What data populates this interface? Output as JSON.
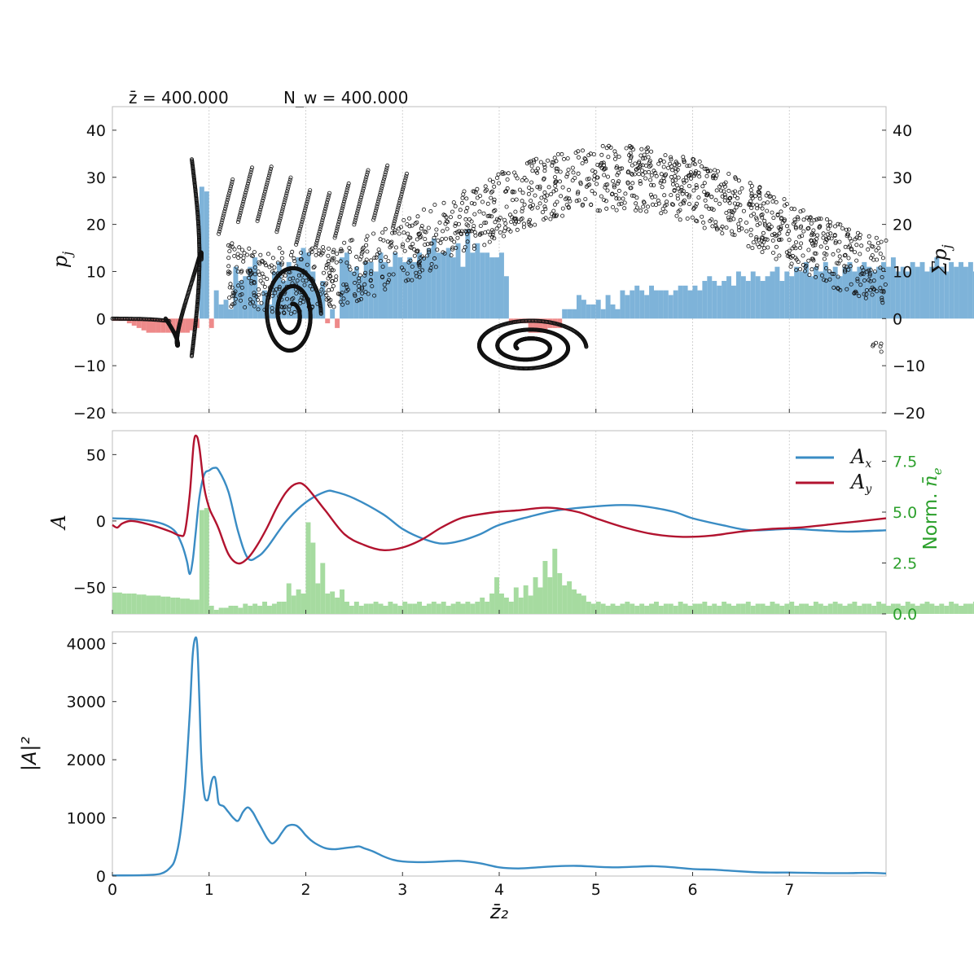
{
  "header": {
    "zbar_label": "z̄ = 400.000",
    "nw_label": "N_w = 400.000"
  },
  "xaxis": {
    "label": "z̄₂",
    "ticks": [
      "0",
      "1",
      "2",
      "3",
      "4",
      "5",
      "6",
      "7"
    ]
  },
  "colors": {
    "blue": "#3a8cc4",
    "red": "#b2132f",
    "hist_blue": "#7eb3d9",
    "hist_red": "#ee8a8a",
    "hist_green": "#a6dba0",
    "green_axis": "#2ca02c"
  },
  "chart_data": [
    {
      "type": "scatter",
      "panel": "phase-space",
      "ylabel_left": "p_j",
      "ylabel_right": "Σp_j",
      "xlim": [
        0,
        8
      ],
      "ylim": [
        -20,
        45
      ],
      "yticks": [
        "−20",
        "−10",
        "0",
        "10",
        "20",
        "30",
        "40"
      ],
      "grid": "vertical dotted lines at integer x",
      "particles": "black open circles; dense spiral at x≈0–0.9 (range −8 to 34), bucket at x≈1.5–2.2 (range −10 to 12), vortex at x≈3.7–5.0 (range −12 to 0), upper band following 20 + 15·cos shape between x≈1 and 8 (range 18–42)",
      "histogram_sum_pj": {
        "bin_width": 0.05,
        "values": [
          -0.5,
          -0.5,
          -0.5,
          -1,
          -1.5,
          -2,
          -2.5,
          -3,
          -3,
          -3,
          -3,
          -3,
          -3,
          -3,
          -3,
          -3,
          -2.5,
          -2,
          28,
          27,
          -2,
          6,
          3,
          4,
          2,
          11,
          8,
          9,
          11,
          13,
          3,
          6,
          3,
          10,
          12,
          8,
          12,
          11,
          13,
          15,
          14,
          10,
          6,
          8,
          -1,
          2,
          -2,
          13,
          14,
          10,
          11,
          9,
          12,
          12,
          10,
          14,
          12,
          11,
          14,
          13,
          12,
          13,
          12,
          14,
          13,
          15,
          17,
          14,
          14,
          15,
          13,
          16,
          11,
          19,
          14,
          16,
          14,
          14,
          13,
          13,
          14,
          9,
          -1,
          -1,
          -1,
          -1,
          -3,
          -3,
          -3,
          -3,
          -2,
          -2,
          -2,
          2,
          2,
          2,
          5,
          4,
          3,
          3,
          4,
          2,
          5,
          3,
          2,
          6,
          5,
          6,
          7,
          6,
          5,
          7,
          6,
          6,
          6,
          5,
          6,
          7,
          7,
          6,
          7,
          6,
          8,
          9,
          8,
          7,
          8,
          9,
          7,
          10,
          9,
          8,
          10,
          9,
          8,
          9,
          10,
          11,
          8,
          10,
          9,
          11,
          10,
          12,
          9,
          11,
          10,
          12,
          10,
          11,
          9,
          11,
          12,
          10,
          11,
          12,
          11,
          10,
          11,
          12,
          11,
          13,
          10,
          11,
          10,
          12,
          11,
          12,
          10,
          11,
          13,
          11,
          10,
          12,
          11,
          12,
          11,
          12,
          10,
          11,
          12,
          11,
          10,
          12,
          11,
          12,
          11,
          10,
          11
        ]
      }
    },
    {
      "type": "line",
      "panel": "field",
      "ylabel": "A",
      "ylabel_right": "Norm. n̄_e",
      "xlim": [
        0,
        8
      ],
      "ylim": [
        -70,
        68
      ],
      "yticks": [
        "−50",
        "0",
        "50"
      ],
      "right_ylim": [
        0,
        9
      ],
      "right_yticks": [
        "0.0",
        "2.5",
        "5.0",
        "7.5"
      ],
      "legend": "top-right",
      "series": [
        {
          "name": "A_x",
          "x": [
            0,
            0.2,
            0.4,
            0.55,
            0.65,
            0.72,
            0.77,
            0.8,
            0.83,
            0.86,
            0.9,
            0.95,
            1.0,
            1.05,
            1.1,
            1.2,
            1.3,
            1.4,
            1.5,
            1.6,
            1.8,
            2.0,
            2.2,
            2.3,
            2.5,
            2.8,
            3.0,
            3.2,
            3.4,
            3.6,
            3.8,
            4.0,
            4.3,
            4.6,
            5.0,
            5.3,
            5.5,
            5.8,
            6.0,
            6.3,
            6.6,
            7.0,
            7.3,
            7.6,
            8.0
          ],
          "y": [
            2,
            1.5,
            0,
            -3,
            -8,
            -18,
            -30,
            -40,
            -30,
            -10,
            18,
            35,
            38,
            40,
            38,
            22,
            -8,
            -28,
            -27,
            -20,
            0,
            14,
            22,
            22,
            17,
            5,
            -6,
            -13,
            -17,
            -15,
            -10,
            -3,
            3,
            8,
            11,
            12,
            11,
            7,
            2,
            -3,
            -7,
            -6,
            -7,
            -8,
            -7
          ]
        },
        {
          "name": "A_y",
          "x": [
            0,
            0.05,
            0.1,
            0.2,
            0.4,
            0.6,
            0.7,
            0.75,
            0.8,
            0.84,
            0.87,
            0.9,
            0.95,
            1.0,
            1.05,
            1.1,
            1.2,
            1.3,
            1.4,
            1.5,
            1.6,
            1.7,
            1.8,
            1.9,
            2.0,
            2.2,
            2.4,
            2.6,
            2.8,
            3.0,
            3.2,
            3.4,
            3.6,
            3.8,
            4.0,
            4.2,
            4.5,
            4.8,
            5.0,
            5.3,
            5.6,
            5.9,
            6.2,
            6.5,
            6.8,
            7.1,
            7.5,
            8.0
          ],
          "y": [
            -3,
            -5,
            -2,
            0,
            -3,
            -8,
            -11,
            -8,
            20,
            58,
            64,
            55,
            25,
            10,
            2,
            -6,
            -25,
            -32,
            -28,
            -18,
            -5,
            10,
            22,
            28,
            26,
            8,
            -10,
            -18,
            -22,
            -20,
            -14,
            -5,
            2,
            5,
            7,
            8,
            10,
            7,
            2,
            -5,
            -10,
            -12,
            -11,
            -8,
            -6,
            -5,
            -2,
            2
          ]
        }
      ],
      "histogram_norm_ne": {
        "bin_width": 0.05,
        "values": [
          1.05,
          1.05,
          1.0,
          1.0,
          1.0,
          0.95,
          0.95,
          0.9,
          0.9,
          0.9,
          0.85,
          0.85,
          0.8,
          0.8,
          0.75,
          0.75,
          0.7,
          0.7,
          5.1,
          5.2,
          0.4,
          0.2,
          0.3,
          0.3,
          0.4,
          0.4,
          0.3,
          0.5,
          0.4,
          0.5,
          0.4,
          0.6,
          0.4,
          0.5,
          0.6,
          0.6,
          1.5,
          0.9,
          1.2,
          1.0,
          4.5,
          3.5,
          1.5,
          2.5,
          1.0,
          1.1,
          0.8,
          1.2,
          0.6,
          0.4,
          0.6,
          0.4,
          0.5,
          0.5,
          0.6,
          0.5,
          0.4,
          0.6,
          0.5,
          0.4,
          0.6,
          0.5,
          0.5,
          0.6,
          0.4,
          0.5,
          0.6,
          0.5,
          0.6,
          0.4,
          0.5,
          0.6,
          0.5,
          0.6,
          0.5,
          0.6,
          0.8,
          0.6,
          1.0,
          1.8,
          1.0,
          0.8,
          0.6,
          1.3,
          0.8,
          1.4,
          0.9,
          1.8,
          1.3,
          2.6,
          1.8,
          3.2,
          2.0,
          1.4,
          1.6,
          1.2,
          1.0,
          0.9,
          0.6,
          0.5,
          0.6,
          0.5,
          0.4,
          0.5,
          0.4,
          0.5,
          0.6,
          0.5,
          0.4,
          0.5,
          0.4,
          0.5,
          0.6,
          0.4,
          0.5,
          0.5,
          0.4,
          0.6,
          0.5,
          0.4,
          0.5,
          0.5,
          0.6,
          0.4,
          0.5,
          0.4,
          0.6,
          0.5,
          0.4,
          0.5,
          0.5,
          0.6,
          0.4,
          0.5,
          0.5,
          0.4,
          0.6,
          0.5,
          0.4,
          0.5,
          0.6,
          0.4,
          0.5,
          0.5,
          0.4,
          0.6,
          0.5,
          0.4,
          0.5,
          0.6,
          0.5,
          0.4,
          0.5,
          0.6,
          0.4,
          0.5,
          0.5,
          0.4,
          0.6,
          0.5,
          0.4,
          0.5,
          0.5,
          0.4,
          0.6,
          0.5,
          0.4,
          0.5,
          0.6,
          0.5,
          0.4,
          0.5,
          0.4,
          0.6,
          0.5,
          0.4,
          0.5,
          0.5,
          0.6,
          0.4,
          0.5,
          0.5,
          0.4,
          0.6,
          0.5,
          0.4,
          0.5,
          0.5,
          0.4,
          0.5,
          0.6,
          0.9
        ]
      }
    },
    {
      "type": "line",
      "panel": "intensity",
      "ylabel": "|A|²",
      "xlim": [
        0,
        8
      ],
      "ylim": [
        0,
        4200
      ],
      "yticks": [
        "0",
        "1000",
        "2000",
        "3000",
        "4000"
      ],
      "series": [
        {
          "x": [
            0,
            0.3,
            0.5,
            0.6,
            0.65,
            0.7,
            0.75,
            0.8,
            0.83,
            0.86,
            0.88,
            0.9,
            0.92,
            0.95,
            0.98,
            1.0,
            1.03,
            1.06,
            1.08,
            1.1,
            1.15,
            1.2,
            1.25,
            1.3,
            1.35,
            1.4,
            1.45,
            1.5,
            1.55,
            1.6,
            1.65,
            1.7,
            1.75,
            1.8,
            1.85,
            1.9,
            1.95,
            2.0,
            2.05,
            2.1,
            2.2,
            2.3,
            2.4,
            2.5,
            2.55,
            2.6,
            2.7,
            2.8,
            2.9,
            3.0,
            3.2,
            3.4,
            3.6,
            3.8,
            4.0,
            4.2,
            4.4,
            4.6,
            4.8,
            5.0,
            5.2,
            5.4,
            5.6,
            5.8,
            6.0,
            6.2,
            6.4,
            6.6,
            6.8,
            7.0,
            7.2,
            7.4,
            7.6,
            7.8,
            8.0
          ],
          "y": [
            10,
            15,
            40,
            150,
            300,
            700,
            1500,
            2800,
            3800,
            4100,
            3900,
            3000,
            2000,
            1400,
            1300,
            1400,
            1650,
            1700,
            1500,
            1250,
            1200,
            1100,
            1000,
            950,
            1100,
            1180,
            1100,
            950,
            800,
            650,
            560,
            620,
            740,
            850,
            880,
            870,
            800,
            700,
            620,
            560,
            480,
            460,
            480,
            500,
            510,
            480,
            420,
            340,
            280,
            250,
            240,
            250,
            260,
            220,
            150,
            130,
            150,
            170,
            175,
            160,
            150,
            160,
            170,
            150,
            120,
            110,
            90,
            70,
            60,
            60,
            55,
            50,
            50,
            55,
            45
          ]
        }
      ]
    }
  ]
}
